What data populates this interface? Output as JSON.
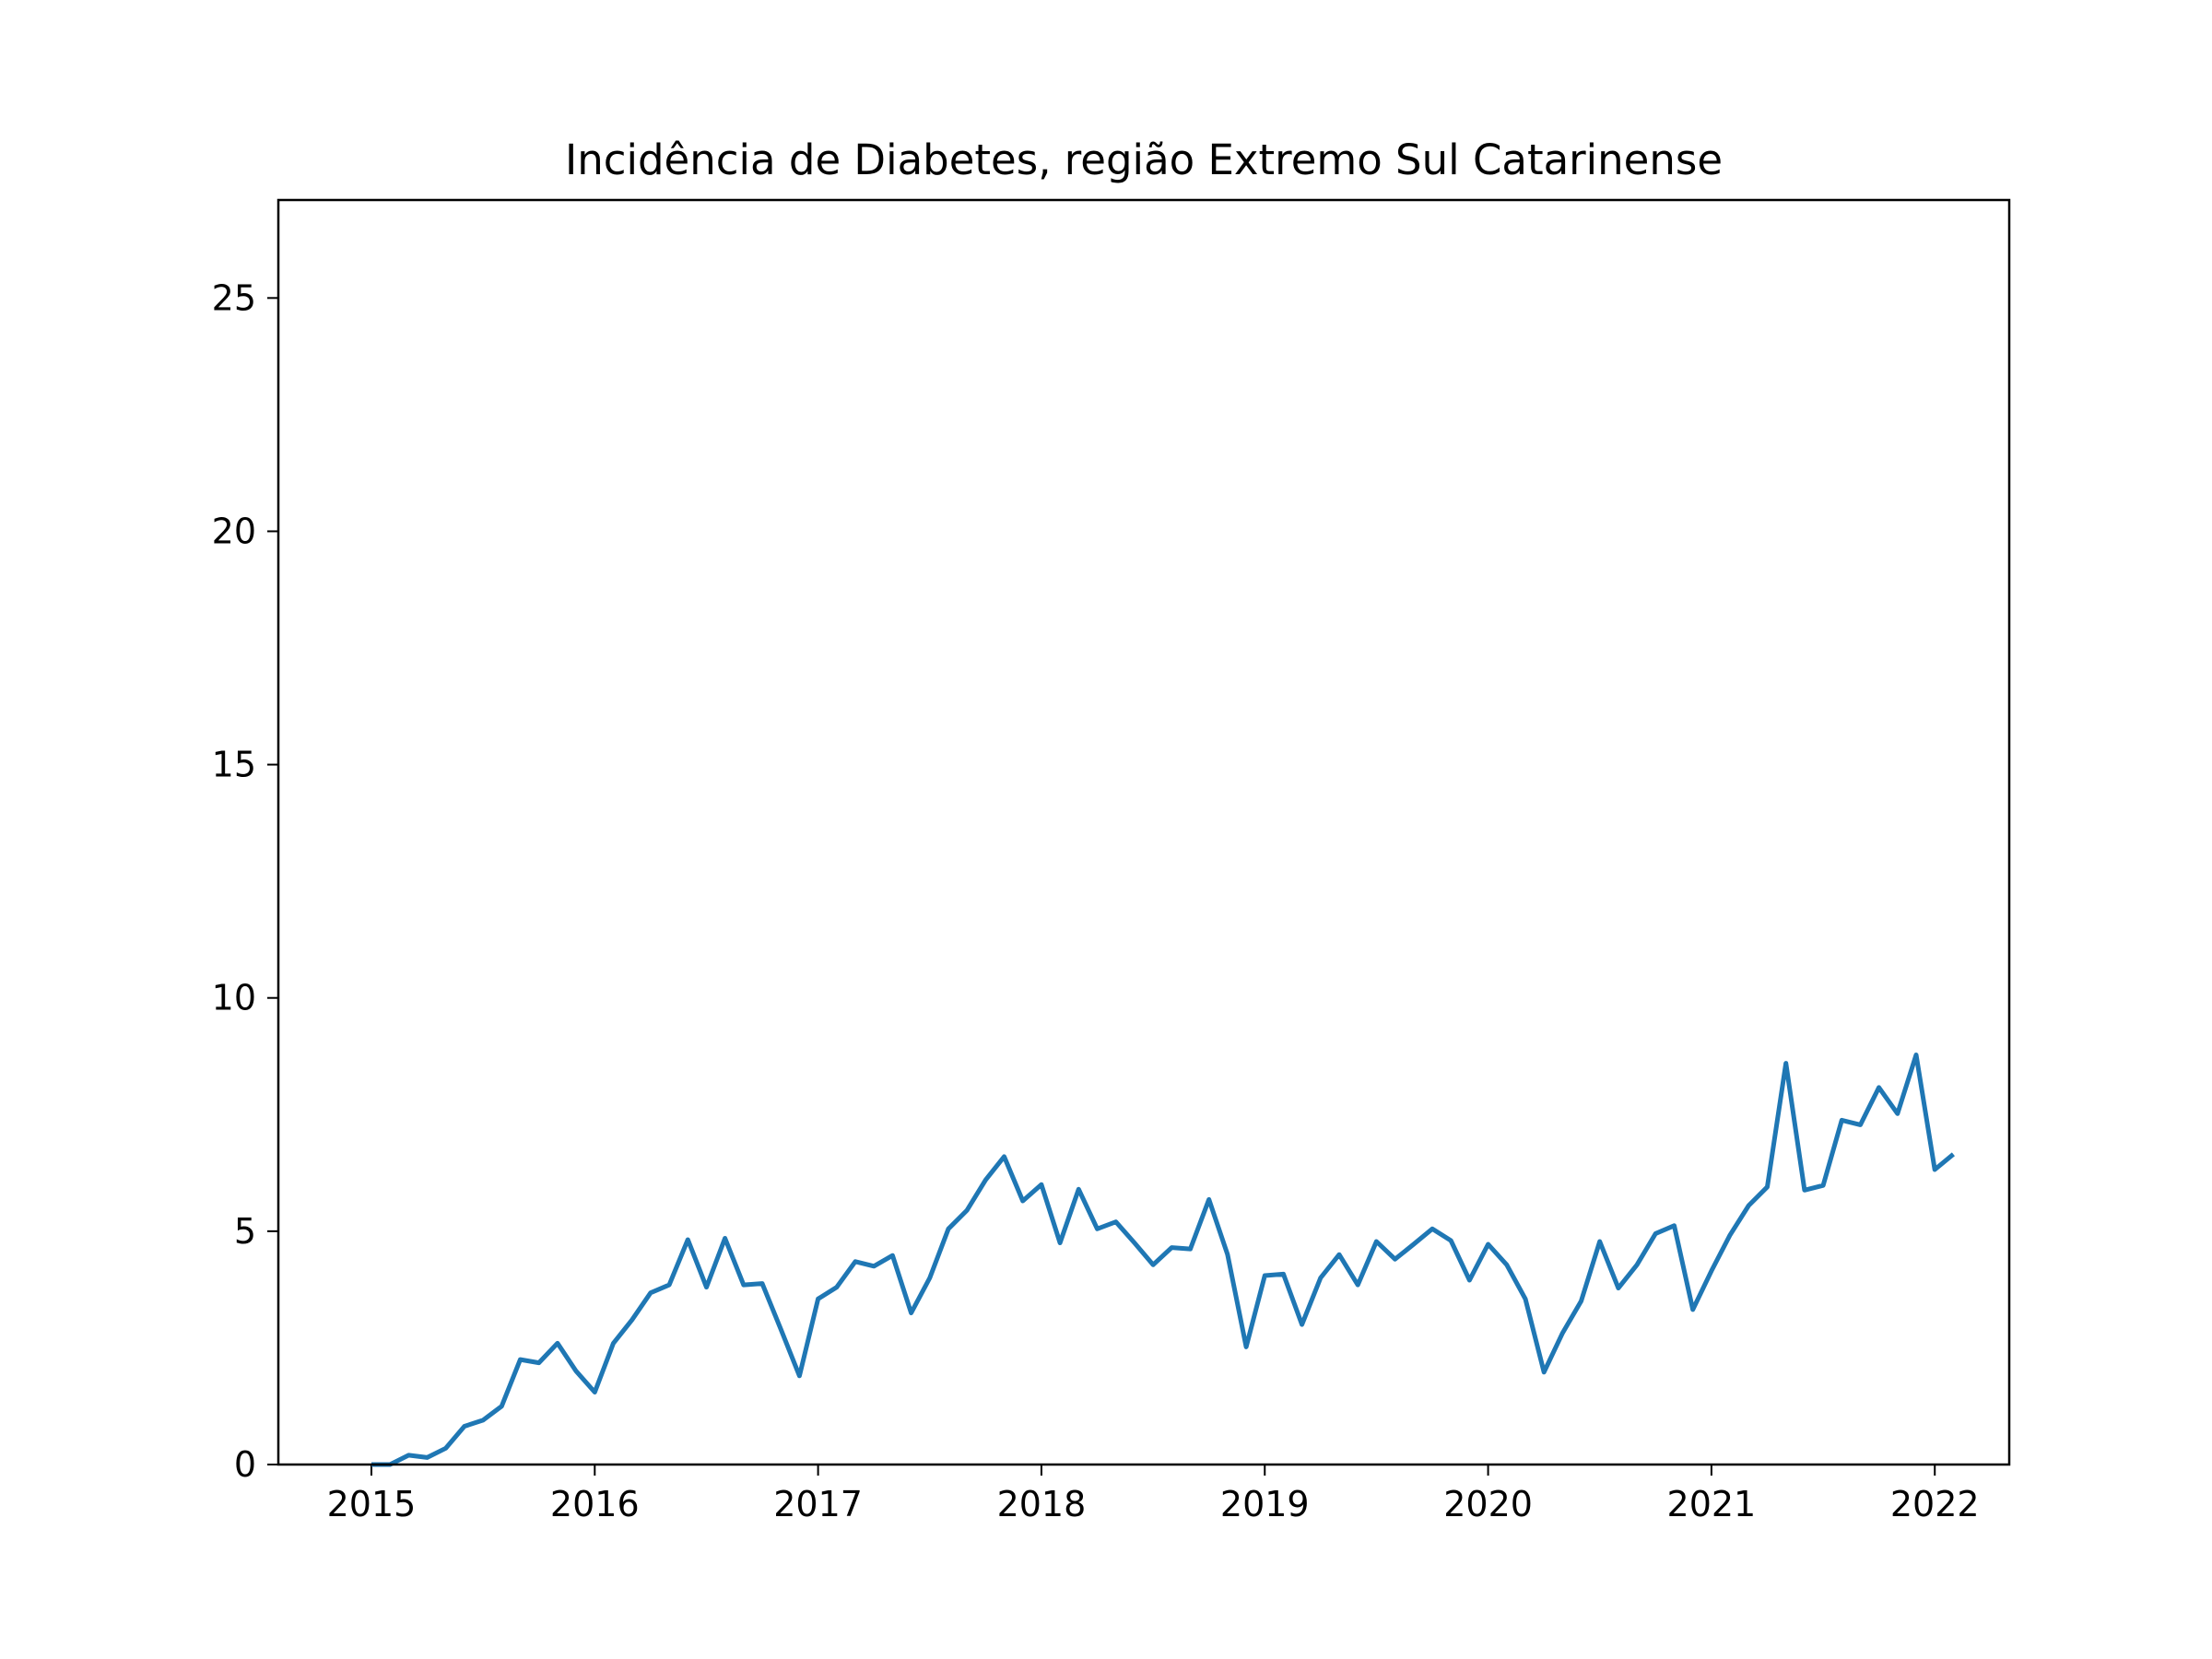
{
  "chart_data": {
    "type": "line",
    "title": "Incidência de Diabetes, região Extremo Sul Catarinense",
    "xlabel": "",
    "ylabel": "",
    "x_ticks": [
      "2015",
      "2016",
      "2017",
      "2018",
      "2019",
      "2020",
      "2021",
      "2022"
    ],
    "y_ticks": [
      "0",
      "5",
      "10",
      "15",
      "20",
      "25"
    ],
    "ylim": [
      0,
      27.1
    ],
    "xlim": [
      "2014-08",
      "2022-05"
    ],
    "grid": false,
    "line_color": "#1f77b4",
    "series": [
      {
        "x": [
          "2015-01",
          "2015-02",
          "2015-03",
          "2015-04",
          "2015-05",
          "2015-06",
          "2015-07",
          "2015-08",
          "2015-09",
          "2015-10",
          "2015-11",
          "2015-12",
          "2016-01",
          "2016-02",
          "2016-03",
          "2016-04",
          "2016-05",
          "2016-06",
          "2016-07",
          "2016-08",
          "2016-09",
          "2016-10",
          "2016-11",
          "2016-12",
          "2017-01",
          "2017-02",
          "2017-03",
          "2017-04",
          "2017-05",
          "2017-06",
          "2017-07",
          "2017-08",
          "2017-09",
          "2017-10",
          "2017-11",
          "2017-12",
          "2018-01",
          "2018-02",
          "2018-03",
          "2018-04",
          "2018-05",
          "2018-06",
          "2018-07",
          "2018-08",
          "2018-09",
          "2018-10",
          "2018-11",
          "2018-12",
          "2019-01",
          "2019-02",
          "2019-03",
          "2019-04",
          "2019-05",
          "2019-06",
          "2019-07",
          "2019-08",
          "2019-09",
          "2019-10",
          "2019-11",
          "2019-12",
          "2020-01",
          "2020-02",
          "2020-03",
          "2020-04",
          "2020-05",
          "2020-06",
          "2020-07",
          "2020-08",
          "2020-09",
          "2020-10",
          "2020-11",
          "2020-12",
          "2021-01",
          "2021-02",
          "2021-03",
          "2021-04",
          "2021-05",
          "2021-06",
          "2021-07",
          "2021-08",
          "2021-09",
          "2021-10",
          "2021-11",
          "2021-12",
          "2022-01",
          "2022-02"
        ],
        "values": [
          0.0,
          0.0,
          0.2,
          0.15,
          0.35,
          0.82,
          0.95,
          1.25,
          2.25,
          2.18,
          2.6,
          2.0,
          1.55,
          2.6,
          3.1,
          3.68,
          3.85,
          4.82,
          3.8,
          4.85,
          3.85,
          3.88,
          2.9,
          1.9,
          3.55,
          3.8,
          4.35,
          4.25,
          4.48,
          3.25,
          4.0,
          5.05,
          5.45,
          6.1,
          6.6,
          5.65,
          6.0,
          4.75,
          5.9,
          5.05,
          5.2,
          4.75,
          4.28,
          4.65,
          4.62,
          5.68,
          4.5,
          2.52,
          4.05,
          4.08,
          3.0,
          4.0,
          4.5,
          3.85,
          4.78,
          4.4,
          4.72,
          5.05,
          4.8,
          3.95,
          4.72,
          4.28,
          3.55,
          1.98,
          2.82,
          3.5,
          4.78,
          3.78,
          4.28,
          4.95,
          5.12,
          3.32,
          4.15,
          4.92,
          5.55,
          5.95,
          8.6,
          5.88,
          5.98,
          7.38,
          7.28,
          8.08,
          7.52,
          8.78,
          6.32,
          6.65
        ]
      }
    ]
  }
}
